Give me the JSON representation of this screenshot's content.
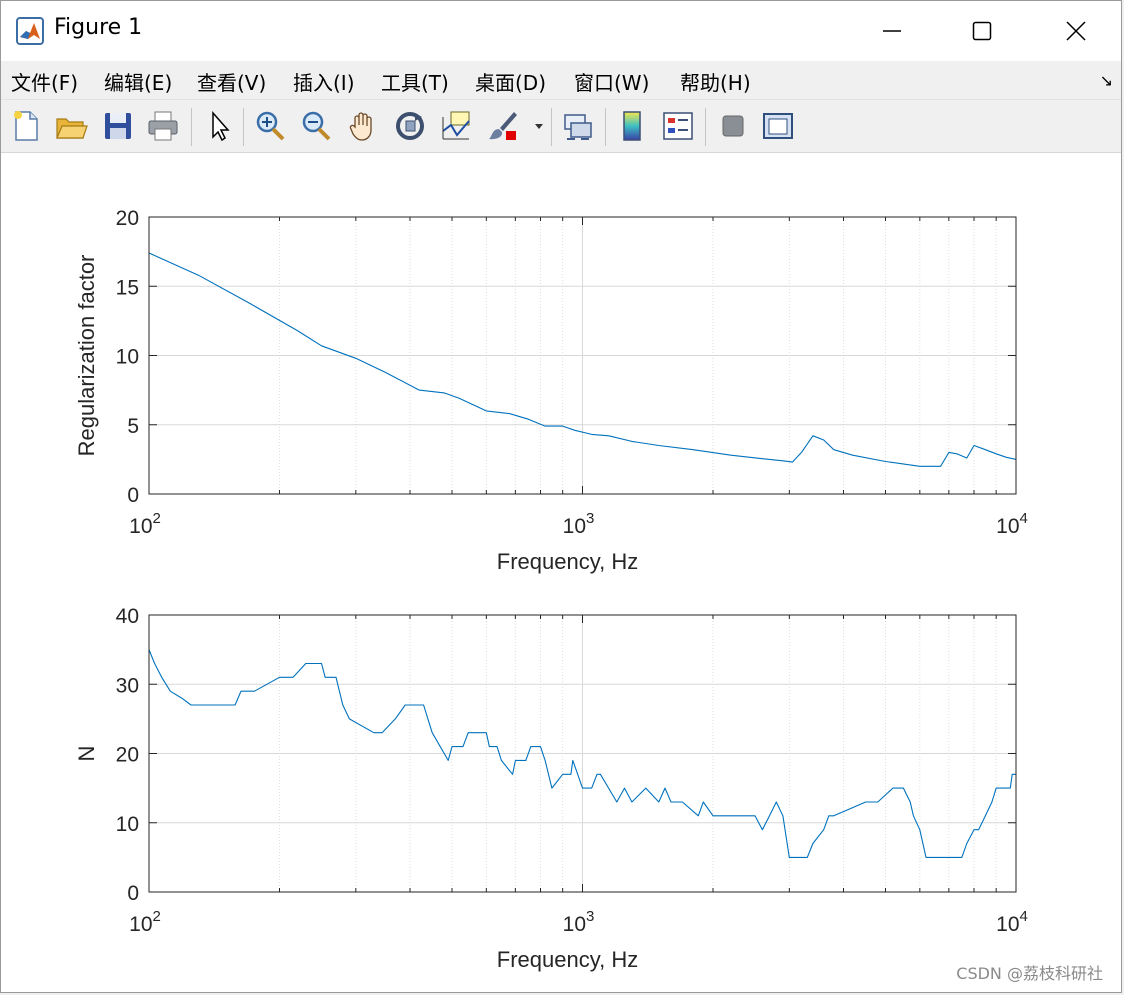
{
  "window": {
    "title": "Figure 1",
    "controls": {
      "minimize": "minimize-icon",
      "maximize": "maximize-icon",
      "close": "close-icon"
    }
  },
  "menu": [
    {
      "label": "文件(F)",
      "key": "F"
    },
    {
      "label": "编辑(E)",
      "key": "E"
    },
    {
      "label": "查看(V)",
      "key": "V"
    },
    {
      "label": "插入(I)",
      "key": "I"
    },
    {
      "label": "工具(T)",
      "key": "T"
    },
    {
      "label": "桌面(D)",
      "key": "D"
    },
    {
      "label": "窗口(W)",
      "key": "W"
    },
    {
      "label": "帮助(H)",
      "key": "H"
    }
  ],
  "toolbar": [
    "new-figure-icon",
    "open-file-icon",
    "save-icon",
    "print-icon",
    "pointer-icon",
    "zoom-in-icon",
    "zoom-out-icon",
    "pan-hand-icon",
    "rotate-3d-icon",
    "data-cursor-icon",
    "brush-icon",
    "brush-dropdown-icon",
    "link-plot-icon",
    "colorbar-icon",
    "legend-icon",
    "hide-plot-tools-icon",
    "show-plot-tools-icon"
  ],
  "watermark": "CSDN @荔枝科研社",
  "colors": {
    "line": "#0072bd",
    "grid": "#d8d8d8",
    "axis": "#262626"
  },
  "chart_data": [
    {
      "type": "line",
      "xscale": "log",
      "xlim": [
        100,
        10000
      ],
      "ylim": [
        0,
        20
      ],
      "yticks": [
        0,
        5,
        10,
        15,
        20
      ],
      "xticks": [
        {
          "value": 100,
          "base": "10",
          "exp": "2"
        },
        {
          "value": 1000,
          "base": "10",
          "exp": "3"
        },
        {
          "value": 10000,
          "base": "10",
          "exp": "4"
        }
      ],
      "xlabel": "Frequency, Hz",
      "ylabel": "Regularization factor",
      "grid": true,
      "series": [
        {
          "x": [
            100,
            130,
            170,
            220,
            250,
            300,
            350,
            420,
            480,
            520,
            600,
            680,
            750,
            820,
            900,
            960,
            1050,
            1150,
            1300,
            1500,
            1800,
            2200,
            2600,
            2900,
            3050,
            3200,
            3400,
            3600,
            3800,
            4200,
            5000,
            6000,
            6700,
            7000,
            7300,
            7700,
            8000,
            8500,
            9000,
            9500,
            10000
          ],
          "y": [
            17.4,
            15.8,
            13.8,
            11.8,
            10.7,
            9.8,
            8.8,
            7.5,
            7.3,
            6.9,
            6.0,
            5.8,
            5.4,
            4.9,
            4.9,
            4.6,
            4.3,
            4.2,
            3.8,
            3.5,
            3.2,
            2.8,
            2.55,
            2.4,
            2.3,
            3.0,
            4.2,
            3.9,
            3.2,
            2.8,
            2.35,
            2.0,
            2.0,
            3.0,
            2.9,
            2.6,
            3.5,
            3.2,
            2.9,
            2.65,
            2.5
          ]
        }
      ]
    },
    {
      "type": "line",
      "xscale": "log",
      "xlim": [
        100,
        10000
      ],
      "ylim": [
        0,
        40
      ],
      "yticks": [
        0,
        10,
        20,
        30,
        40
      ],
      "xticks": [
        {
          "value": 100,
          "base": "10",
          "exp": "2"
        },
        {
          "value": 1000,
          "base": "10",
          "exp": "3"
        },
        {
          "value": 10000,
          "base": "10",
          "exp": "4"
        }
      ],
      "xlabel": "Frequency, Hz",
      "ylabel": "N",
      "grid": true,
      "series": [
        {
          "x": [
            100,
            103,
            107,
            112,
            119,
            125,
            130,
            145,
            158,
            163,
            175,
            200,
            215,
            230,
            250,
            255,
            270,
            280,
            290,
            330,
            345,
            370,
            390,
            430,
            440,
            450,
            490,
            500,
            530,
            545,
            600,
            610,
            635,
            650,
            690,
            700,
            740,
            760,
            800,
            820,
            850,
            900,
            940,
            950,
            1000,
            1050,
            1080,
            1100,
            1200,
            1250,
            1300,
            1400,
            1500,
            1550,
            1600,
            1700,
            1850,
            1900,
            2000,
            2500,
            2600,
            2700,
            2800,
            2900,
            3000,
            3300,
            3400,
            3600,
            3700,
            3800,
            4500,
            4800,
            5200,
            5500,
            5700,
            5800,
            6000,
            6100,
            6200,
            7500,
            7700,
            8000,
            8200,
            8500,
            8800,
            9000,
            9500,
            9700,
            9800,
            10000
          ],
          "y": [
            35,
            33,
            31,
            29,
            28,
            27,
            27,
            27,
            27,
            29,
            29,
            31,
            31,
            33,
            33,
            31,
            31,
            27,
            25,
            23,
            23,
            25,
            27,
            27,
            25,
            23,
            19,
            21,
            21,
            23,
            23,
            21,
            21,
            19,
            17,
            19,
            19,
            21,
            21,
            19,
            15,
            17,
            17,
            19,
            15,
            15,
            17,
            17,
            13,
            15,
            13,
            15,
            13,
            15,
            13,
            13,
            11,
            13,
            11,
            11,
            9,
            11,
            13,
            11,
            5,
            5,
            7,
            9,
            11,
            11,
            13,
            13,
            15,
            15,
            13,
            11,
            9,
            7,
            5,
            5,
            7,
            9,
            9,
            11,
            13,
            15,
            15,
            15,
            17,
            17
          ]
        }
      ]
    }
  ]
}
